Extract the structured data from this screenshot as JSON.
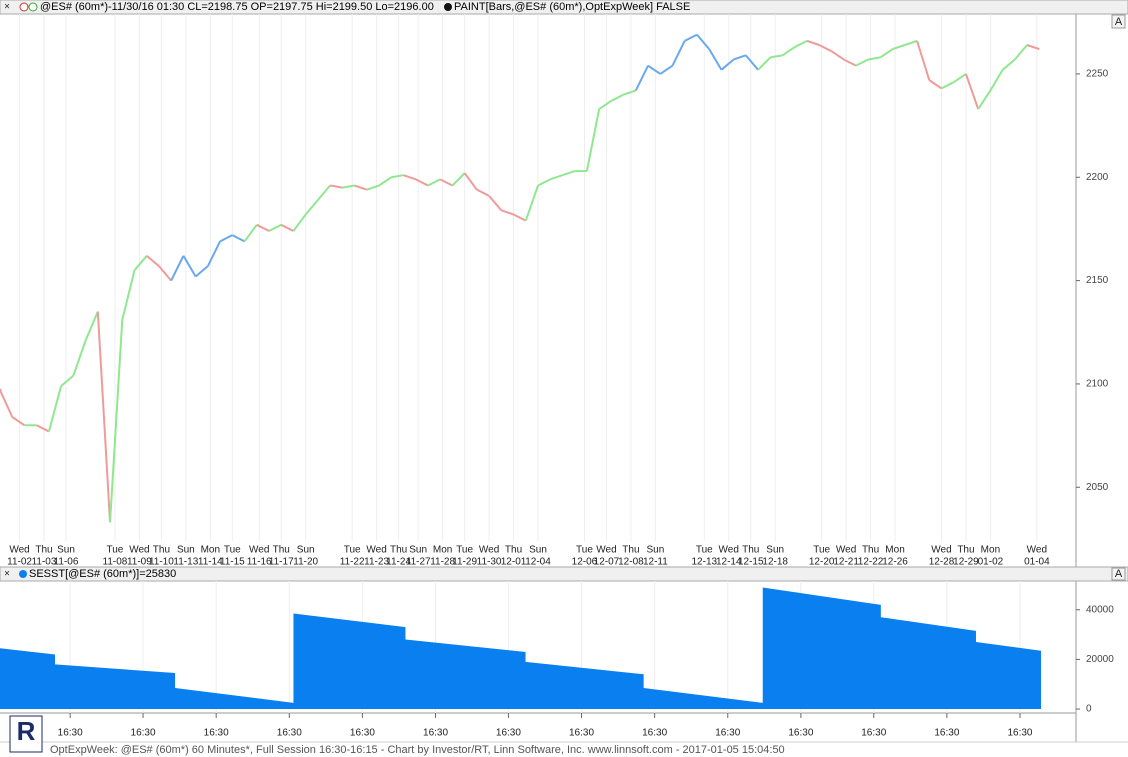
{
  "header": {
    "title": "@ES# (60m*)-11/30/16 01:30 CL=2198.75 OP=2197.75 Hi=2199.50 Lo=2196.00",
    "paint": "PAINT[Bars,@ES# (60m*),OptExpWeek] FALSE"
  },
  "footer": "OptExpWeek: @ES# (60m*) 60 Minutes*, Full Session 16:30-16:15 - Chart by Investor/RT, Linn Software, Inc. www.linnsoft.com - 2017-01-05 15:04:50",
  "chart_data": [
    {
      "type": "line",
      "xlim": [
        0,
        44
      ],
      "ylim": [
        2024,
        2279
      ],
      "yticks": [
        2050,
        2100,
        2150,
        2200,
        2250
      ],
      "x": [
        0,
        0.5,
        1,
        1.5,
        2,
        2.5,
        3,
        3.5,
        4,
        4.5,
        5,
        5.5,
        6,
        6.5,
        7,
        7.5,
        8,
        8.5,
        9,
        9.5,
        10,
        10.5,
        11,
        11.5,
        12,
        12.5,
        13,
        13.5,
        14,
        14.5,
        15,
        15.5,
        16,
        16.5,
        17,
        17.5,
        18,
        18.5,
        19,
        19.5,
        20,
        20.5,
        21,
        21.5,
        22,
        22.5,
        23,
        23.5,
        24,
        24.5,
        25,
        25.5,
        26,
        26.5,
        27,
        27.5,
        28,
        28.5,
        29,
        29.5,
        30,
        30.5,
        31,
        31.5,
        32,
        32.5,
        33,
        33.5,
        34,
        34.5,
        35,
        35.5,
        36,
        36.5,
        37,
        37.5,
        38,
        38.5,
        39,
        39.5,
        40,
        40.5,
        41,
        41.5,
        42,
        42.5
      ],
      "values": [
        2097,
        2084,
        2080,
        2080,
        2077,
        2099,
        2104,
        2121,
        2135,
        2033,
        2131,
        2155,
        2162,
        2157,
        2150,
        2162,
        2152,
        2157,
        2169,
        2172,
        2169,
        2177,
        2174,
        2177,
        2174,
        2182,
        2189,
        2196,
        2195,
        2196,
        2194,
        2196,
        2200,
        2201,
        2199,
        2196,
        2199,
        2196,
        2202,
        2194,
        2191,
        2184,
        2182,
        2179,
        2196,
        2199,
        2201,
        2203,
        2203,
        2233,
        2237,
        2240,
        2242,
        2254,
        2250,
        2254,
        2266,
        2269,
        2262,
        2252,
        2257,
        2259,
        2252,
        2258,
        2259,
        2263,
        2266,
        2264,
        2261,
        2257,
        2254,
        2257,
        2258,
        2262,
        2264,
        2266,
        2247,
        2243,
        2246,
        2250,
        2233,
        2242,
        2252,
        2257,
        2264,
        2262
      ],
      "up_color": "#8fe88f",
      "down_color": "#f09a9a",
      "highlight_color": "#6aa8ee",
      "highlight_ranges": [
        [
          7.2,
          10.3
        ],
        [
          26.4,
          31.3
        ]
      ],
      "date_labels": {
        "x": [
          0.8,
          1.8,
          2.7,
          4.7,
          5.7,
          6.6,
          7.6,
          8.6,
          9.5,
          10.6,
          11.5,
          12.5,
          14.4,
          15.4,
          16.3,
          17.1,
          18.1,
          19.0,
          20.0,
          21.0,
          22.0,
          23.9,
          24.8,
          25.8,
          26.8,
          28.8,
          29.8,
          30.7,
          31.7,
          33.6,
          34.6,
          35.6,
          36.6,
          38.5,
          39.5,
          40.5,
          42.4
        ],
        "days": [
          "Wed",
          "Thu",
          "Sun",
          "Tue",
          "Wed",
          "Thu",
          "Sun",
          "Mon",
          "Tue",
          "Wed",
          "Thu",
          "Sun",
          "Tue",
          "Wed",
          "Thu",
          "Sun",
          "Mon",
          "Tue",
          "Wed",
          "Thu",
          "Sun",
          "Tue",
          "Wed",
          "Thu",
          "Sun",
          "Tue",
          "Wed",
          "Thu",
          "Sun",
          "Tue",
          "Wed",
          "Thu",
          "Mon",
          "Wed",
          "Thu",
          "Mon",
          "Wed"
        ],
        "dates": [
          "11-02",
          "11-03",
          "11-06",
          "11-08",
          "11-09",
          "11-10",
          "11-13",
          "11-14",
          "11-15",
          "11-16",
          "11-17",
          "11-20",
          "11-22",
          "11-23",
          "11-24",
          "11-27",
          "11-28",
          "11-29",
          "11-30",
          "12-01",
          "12-04",
          "12-06",
          "12-07",
          "12-08",
          "12-11",
          "12-13",
          "12-14",
          "12-15",
          "12-18",
          "12-20",
          "12-21",
          "12-22",
          "12-26",
          "12-28",
          "12-29",
          "01-02",
          "01-04"
        ]
      }
    },
    {
      "type": "area",
      "title": "SESST[@ES# (60m*)]=25830",
      "color": "#0a7ff0",
      "xlim": [
        0,
        44
      ],
      "ylim": [
        -1600,
        51600
      ],
      "yticks": [
        0,
        20000,
        40000
      ],
      "x": [
        0,
        2.25,
        2.25,
        7.16,
        7.16,
        12.0,
        12.0,
        16.58,
        16.58,
        21.49,
        21.49,
        26.32,
        26.32,
        31.19,
        31.19,
        36.02,
        36.02,
        39.91,
        39.91,
        42.57
      ],
      "values": [
        24500,
        22000,
        18000,
        14500,
        8500,
        2500,
        38500,
        33000,
        28000,
        23000,
        19000,
        14000,
        8500,
        2500,
        49000,
        42000,
        37000,
        31500,
        27000,
        23500
      ],
      "xticks": [
        {
          "value": 2.87,
          "label": "16:30"
        },
        {
          "value": 5.85,
          "label": "16:30"
        },
        {
          "value": 8.84,
          "label": "16:30"
        },
        {
          "value": 11.83,
          "label": "16:30"
        },
        {
          "value": 14.82,
          "label": "16:30"
        },
        {
          "value": 17.81,
          "label": "16:30"
        },
        {
          "value": 20.79,
          "label": "16:30"
        },
        {
          "value": 23.78,
          "label": "16:30"
        },
        {
          "value": 26.77,
          "label": "16:30"
        },
        {
          "value": 29.76,
          "label": "16:30"
        },
        {
          "value": 32.75,
          "label": "16:30"
        },
        {
          "value": 35.73,
          "label": "16:30"
        },
        {
          "value": 38.72,
          "label": "16:30"
        },
        {
          "value": 41.71,
          "label": "16:30"
        }
      ]
    }
  ]
}
